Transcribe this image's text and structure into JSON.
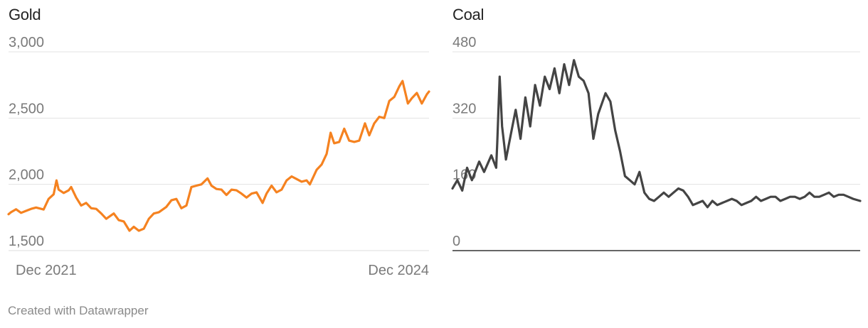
{
  "footer": "Created with Datawrapper",
  "chart_data": [
    {
      "type": "line",
      "title": "Gold",
      "color": "#f58220",
      "ylim": [
        1500,
        3000
      ],
      "yticks": [
        1500,
        2000,
        2500,
        3000
      ],
      "ytick_labels": [
        "1,500",
        "2,000",
        "2,500",
        "3,000"
      ],
      "xlim": [
        "2021-10-25",
        "2025-01-12"
      ],
      "xticks": [
        "2021-12-01",
        "2024-12-01"
      ],
      "xtick_labels": [
        "Dec 2021",
        "Dec 2024"
      ],
      "grid": true,
      "series": [
        {
          "x": [
            "2021-10-25",
            "2021-11-01",
            "2021-11-15",
            "2021-11-29",
            "2021-12-13",
            "2021-12-27",
            "2022-01-10",
            "2022-01-31",
            "2022-02-14",
            "2022-02-28",
            "2022-03-08",
            "2022-03-14",
            "2022-03-28",
            "2022-04-11",
            "2022-04-18",
            "2022-05-02",
            "2022-05-16",
            "2022-05-30",
            "2022-06-13",
            "2022-06-27",
            "2022-07-11",
            "2022-07-25",
            "2022-08-15",
            "2022-08-29",
            "2022-09-12",
            "2022-09-28",
            "2022-10-10",
            "2022-10-24",
            "2022-11-07",
            "2022-11-21",
            "2022-12-05",
            "2022-12-19",
            "2023-01-09",
            "2023-01-23",
            "2023-02-06",
            "2023-02-20",
            "2023-03-06",
            "2023-03-20",
            "2023-04-03",
            "2023-04-17",
            "2023-05-04",
            "2023-05-15",
            "2023-05-29",
            "2023-06-12",
            "2023-06-26",
            "2023-07-10",
            "2023-07-24",
            "2023-08-07",
            "2023-08-21",
            "2023-09-04",
            "2023-09-18",
            "2023-10-05",
            "2023-10-16",
            "2023-10-30",
            "2023-11-13",
            "2023-11-27",
            "2023-12-11",
            "2023-12-25",
            "2024-01-08",
            "2024-01-22",
            "2024-02-05",
            "2024-02-14",
            "2024-03-04",
            "2024-03-18",
            "2024-04-01",
            "2024-04-12",
            "2024-04-22",
            "2024-05-06",
            "2024-05-20",
            "2024-06-03",
            "2024-06-17",
            "2024-07-01",
            "2024-07-17",
            "2024-07-29",
            "2024-08-12",
            "2024-08-26",
            "2024-09-09",
            "2024-09-23",
            "2024-10-07",
            "2024-10-21",
            "2024-10-30",
            "2024-11-14",
            "2024-11-25",
            "2024-12-09",
            "2024-12-23",
            "2025-01-06",
            "2025-01-12"
          ],
          "values": [
            1775,
            1790,
            1812,
            1785,
            1800,
            1815,
            1825,
            1810,
            1890,
            1925,
            2030,
            1960,
            1935,
            1955,
            1980,
            1900,
            1840,
            1860,
            1820,
            1815,
            1780,
            1740,
            1780,
            1730,
            1720,
            1650,
            1680,
            1650,
            1665,
            1740,
            1780,
            1790,
            1830,
            1880,
            1890,
            1820,
            1840,
            1980,
            1990,
            2000,
            2045,
            1990,
            1965,
            1960,
            1920,
            1960,
            1955,
            1930,
            1900,
            1930,
            1940,
            1860,
            1930,
            1990,
            1940,
            1960,
            2030,
            2060,
            2040,
            2020,
            2030,
            2000,
            2110,
            2150,
            2230,
            2390,
            2310,
            2320,
            2420,
            2330,
            2320,
            2330,
            2460,
            2370,
            2460,
            2510,
            2500,
            2630,
            2660,
            2740,
            2780,
            2610,
            2650,
            2690,
            2610,
            2680,
            2700
          ]
        }
      ]
    },
    {
      "type": "line",
      "title": "Coal",
      "color": "#444444",
      "ylim": [
        0,
        480
      ],
      "yticks": [
        0,
        160,
        320,
        480
      ],
      "ytick_labels": [
        "0",
        "160",
        "320",
        "480"
      ],
      "xlim": [
        "2021-10-25",
        "2025-01-12"
      ],
      "grid": true,
      "series": [
        {
          "x": [
            "2021-10-25",
            "2021-11-08",
            "2021-11-22",
            "2021-12-06",
            "2021-12-20",
            "2022-01-10",
            "2022-01-24",
            "2022-02-14",
            "2022-02-28",
            "2022-03-03",
            "2022-03-10",
            "2022-03-17",
            "2022-03-28",
            "2022-04-11",
            "2022-04-25",
            "2022-05-09",
            "2022-05-23",
            "2022-06-06",
            "2022-06-20",
            "2022-07-04",
            "2022-07-18",
            "2022-08-01",
            "2022-08-15",
            "2022-08-29",
            "2022-09-12",
            "2022-09-26",
            "2022-10-10",
            "2022-10-24",
            "2022-11-07",
            "2022-11-21",
            "2022-12-05",
            "2022-12-19",
            "2023-01-09",
            "2023-01-23",
            "2023-02-06",
            "2023-02-20",
            "2023-03-06",
            "2023-03-20",
            "2023-04-03",
            "2023-04-17",
            "2023-05-01",
            "2023-05-15",
            "2023-05-29",
            "2023-06-12",
            "2023-06-26",
            "2023-07-10",
            "2023-07-24",
            "2023-08-07",
            "2023-08-21",
            "2023-09-04",
            "2023-09-18",
            "2023-10-02",
            "2023-10-16",
            "2023-10-30",
            "2023-11-13",
            "2023-11-27",
            "2023-12-11",
            "2024-01-08",
            "2024-01-22",
            "2024-02-05",
            "2024-02-19",
            "2024-03-04",
            "2024-03-18",
            "2024-04-01",
            "2024-04-15",
            "2024-04-29",
            "2024-05-13",
            "2024-05-27",
            "2024-06-10",
            "2024-06-24",
            "2024-07-08",
            "2024-07-22",
            "2024-08-05",
            "2024-08-19",
            "2024-09-02",
            "2024-09-16",
            "2024-09-30",
            "2024-10-14",
            "2024-10-28",
            "2024-11-11",
            "2024-11-25",
            "2024-12-09",
            "2024-12-23",
            "2025-01-12"
          ],
          "values": [
            150,
            170,
            145,
            200,
            170,
            215,
            190,
            230,
            200,
            260,
            420,
            300,
            220,
            280,
            340,
            270,
            370,
            300,
            400,
            350,
            420,
            390,
            440,
            380,
            450,
            400,
            460,
            420,
            410,
            380,
            270,
            330,
            380,
            360,
            290,
            240,
            180,
            170,
            160,
            190,
            140,
            125,
            120,
            130,
            140,
            130,
            140,
            150,
            145,
            130,
            110,
            115,
            120,
            105,
            120,
            110,
            115,
            125,
            120,
            110,
            115,
            120,
            130,
            120,
            125,
            130,
            130,
            120,
            125,
            130,
            130,
            125,
            130,
            140,
            130,
            130,
            135,
            140,
            130,
            135,
            135,
            130,
            125,
            120
          ]
        }
      ]
    }
  ]
}
